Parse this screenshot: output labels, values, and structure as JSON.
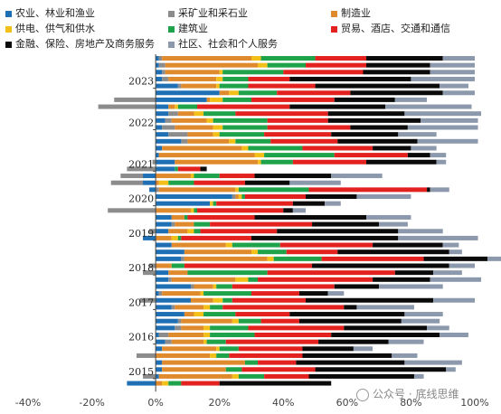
{
  "legend": [
    {
      "label": "农业、林业和渔业",
      "color": "#1F6FB4"
    },
    {
      "label": "采矿业和采石业",
      "color": "#8C8C8C"
    },
    {
      "label": "制造业",
      "color": "#E08A2E"
    },
    {
      "label": "供电、供气和供水",
      "color": "#F2C018"
    },
    {
      "label": "建筑业",
      "color": "#1EA34A"
    },
    {
      "label": "贸易、酒店、交通和通信",
      "color": "#E3211F"
    },
    {
      "label": "金融、保险、房地产及商务服务",
      "color": "#0A0A0A"
    },
    {
      "label": "社区、社会和个人服务",
      "color": "#8C98AC"
    }
  ],
  "watermark": "公众号 · 底线思维",
  "chart_data": {
    "type": "bar",
    "orientation": "horizontal",
    "stacked": true,
    "xlim": [
      -0.4,
      1.0
    ],
    "x_ticks": [
      "-40%",
      "-20%",
      "0%",
      "20%",
      "40%",
      "60%",
      "80%",
      "100%"
    ],
    "y_tick_labels": [
      "2023",
      "2022",
      "2021",
      "2020",
      "2019",
      "2018",
      "2017",
      "2016",
      "2015"
    ],
    "series_order": [
      "农业、林业和渔业",
      "采矿业和采石业",
      "制造业",
      "供电、供气和供水",
      "建筑业",
      "贸易、酒店、交通和通信",
      "金融、保险、房地产及商务服务",
      "社区、社会和个人服务"
    ],
    "rows": [
      [
        0.01,
        0.01,
        0.28,
        0.03,
        0.17,
        0.16,
        0.24,
        0.1
      ],
      [
        0.01,
        0.02,
        0.29,
        0.03,
        0.12,
        0.19,
        0.2,
        0.14
      ],
      [
        0.02,
        0.01,
        0.17,
        0.01,
        0.19,
        0.25,
        0.21,
        0.14
      ],
      [
        0.02,
        0.02,
        0.15,
        0.02,
        0.08,
        0.13,
        0.38,
        0.2
      ],
      [
        0.07,
        0.01,
        0.11,
        0.01,
        0.09,
        0.21,
        0.39,
        0.09
      ],
      [
        0.2,
        0.0,
        0.03,
        0.03,
        0.12,
        0.23,
        0.29,
        0.1
      ],
      [
        0.16,
        -0.13,
        0.01,
        0.04,
        0.09,
        0.26,
        0.19,
        0.1
      ],
      [
        0.04,
        -0.18,
        0.02,
        0.01,
        0.06,
        0.29,
        0.3,
        0.27
      ],
      [
        0.04,
        0.03,
        0.05,
        0.03,
        0.1,
        0.29,
        0.24,
        0.24
      ],
      [
        0.03,
        0.02,
        0.11,
        0.02,
        0.17,
        0.19,
        0.29,
        0.18
      ],
      [
        0.02,
        0.04,
        0.12,
        0.03,
        0.14,
        0.26,
        0.18,
        0.22
      ],
      [
        0.04,
        0.06,
        0.08,
        0.02,
        0.14,
        0.21,
        0.21,
        0.12
      ],
      [
        0.08,
        0.02,
        0.13,
        0.02,
        0.11,
        0.21,
        0.25,
        0.19
      ],
      [
        0.02,
        0.0,
        0.25,
        0.02,
        0.17,
        0.22,
        0.12,
        0.08
      ],
      [
        0.01,
        0.0,
        0.3,
        0.03,
        0.22,
        0.23,
        0.07,
        0.05
      ],
      [
        0.06,
        -0.01,
        0.26,
        0.01,
        0.1,
        0.23,
        0.22,
        0.03
      ],
      [
        0.06,
        -0.09,
        0.0,
        0.0,
        0.01,
        0.07,
        0.02,
        0.0
      ],
      [
        -0.04,
        -0.07,
        0.11,
        0.01,
        0.08,
        0.11,
        0.24,
        0.16
      ],
      [
        -0.04,
        -0.1,
        0.01,
        0.03,
        0.08,
        0.16,
        0.14,
        0.16
      ],
      [
        -0.02,
        0.01,
        0.24,
        0.01,
        0.22,
        0.37,
        0.01,
        0.06
      ],
      [
        0.24,
        0.01,
        0.01,
        0.01,
        0.01,
        0.19,
        0.16,
        0.17
      ],
      [
        0.17,
        0.0,
        0.0,
        0.01,
        0.01,
        0.24,
        0.1,
        0.05
      ],
      [
        0.0,
        -0.15,
        0.11,
        0.01,
        0.01,
        0.27,
        0.03,
        0.04
      ],
      [
        0.05,
        0.0,
        0.04,
        0.0,
        0.01,
        0.21,
        0.35,
        0.14
      ],
      [
        0.05,
        0.01,
        0.06,
        0.0,
        0.05,
        0.32,
        0.21,
        0.09
      ],
      [
        0.04,
        -0.02,
        0.06,
        0.02,
        0.02,
        0.24,
        0.38,
        0.14
      ],
      [
        -0.04,
        0.0,
        0.05,
        0.02,
        0.01,
        0.22,
        0.46,
        0.25
      ],
      [
        0.05,
        0.0,
        0.17,
        0.02,
        0.15,
        0.29,
        0.22,
        0.05
      ],
      [
        0.09,
        0.0,
        0.21,
        0.02,
        0.09,
        0.16,
        0.35,
        0.04
      ],
      [
        0.08,
        0.01,
        0.26,
        0.02,
        0.15,
        0.32,
        0.2,
        0.05
      ],
      [
        0.0,
        -0.02,
        0.05,
        0.0,
        0.04,
        0.4,
        0.43,
        0.08
      ],
      [
        0.04,
        -0.04,
        0.06,
        0.0,
        0.25,
        0.4,
        0.12,
        0.09
      ],
      [
        0.04,
        0.01,
        0.2,
        0.04,
        0.03,
        0.36,
        0.18,
        0.16
      ],
      [
        0.11,
        0.01,
        0.06,
        0.01,
        0.05,
        0.32,
        0.14,
        0.2
      ],
      [
        0.01,
        0.01,
        0.12,
        0.01,
        0.15,
        0.15,
        0.09,
        0.05
      ],
      [
        0.11,
        -0.05,
        0.07,
        0.03,
        0.03,
        0.23,
        0.4,
        0.13
      ],
      [
        0.05,
        0.01,
        0.09,
        0.02,
        0.04,
        0.38,
        0.04,
        0.18
      ],
      [
        0.09,
        0.0,
        0.03,
        0.03,
        0.1,
        0.17,
        0.36,
        0.12
      ],
      [
        0.07,
        0.01,
        0.16,
        0.02,
        0.07,
        0.12,
        0.32,
        0.12
      ],
      [
        0.06,
        0.02,
        0.07,
        0.02,
        0.12,
        0.3,
        0.26,
        0.07
      ],
      [
        0.01,
        0.03,
        0.11,
        0.02,
        0.14,
        0.24,
        0.34,
        0.09
      ],
      [
        0.03,
        0.02,
        0.1,
        0.01,
        0.06,
        0.29,
        0.22,
        0.11
      ],
      [
        0.02,
        0.0,
        0.17,
        0.01,
        0.06,
        0.2,
        0.16,
        0.06
      ],
      [
        0.0,
        -0.06,
        0.17,
        0.02,
        0.04,
        0.23,
        0.28,
        0.08
      ],
      [
        0.02,
        0.0,
        0.26,
        0.0,
        0.04,
        0.12,
        0.34,
        0.18
      ],
      [
        0.02,
        0.0,
        0.2,
        0.0,
        0.05,
        0.23,
        0.41,
        0.03
      ],
      [
        0.01,
        -0.04,
        0.23,
        0.02,
        0.08,
        0.14,
        0.33,
        0.03
      ],
      [
        -0.09,
        0.0,
        0.02,
        0.02,
        0.04,
        0.12,
        0.35,
        0.0
      ]
    ]
  }
}
